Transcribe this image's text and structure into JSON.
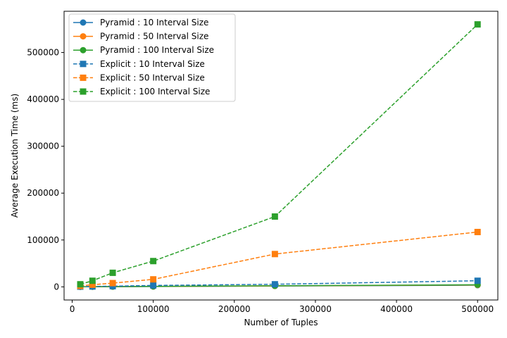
{
  "chart_data": {
    "type": "line",
    "title": "",
    "xlabel": "Number of Tuples",
    "ylabel": "Average Execution Time (ms)",
    "xlim": [
      -10000,
      525000
    ],
    "ylim": [
      -28000,
      588000
    ],
    "xticks": [
      0,
      100000,
      200000,
      300000,
      400000,
      500000
    ],
    "xtick_labels": [
      "0",
      "100000",
      "200000",
      "300000",
      "400000",
      "500000"
    ],
    "yticks": [
      0,
      100000,
      200000,
      300000,
      400000,
      500000
    ],
    "ytick_labels": [
      "0",
      "100000",
      "200000",
      "300000",
      "400000",
      "500000"
    ],
    "grid": false,
    "legend_position": "top-left",
    "x": [
      10000,
      25000,
      50000,
      100000,
      250000,
      500000
    ],
    "series": [
      {
        "name": "Pyramid : 10 Interval Size",
        "color": "#1f77b4",
        "style": "solid",
        "marker": "circle",
        "values": [
          100,
          200,
          400,
          700,
          1800,
          3500
        ]
      },
      {
        "name": "Pyramid : 50 Interval Size",
        "color": "#ff7f0e",
        "style": "solid",
        "marker": "circle",
        "values": [
          120,
          250,
          500,
          900,
          2000,
          4000
        ]
      },
      {
        "name": "Pyramid : 100 Interval Size",
        "color": "#2ca02c",
        "style": "solid",
        "marker": "circle",
        "values": [
          150,
          300,
          600,
          1000,
          2300,
          4500
        ]
      },
      {
        "name": "Explicit : 10 Interval Size",
        "color": "#1f77b4",
        "style": "dashed",
        "marker": "square",
        "values": [
          500,
          800,
          1500,
          3000,
          5500,
          13000
        ]
      },
      {
        "name": "Explicit : 50 Interval Size",
        "color": "#ff7f0e",
        "style": "dashed",
        "marker": "square",
        "values": [
          2000,
          4500,
          8000,
          16000,
          70000,
          117000
        ]
      },
      {
        "name": "Explicit : 100 Interval Size",
        "color": "#2ca02c",
        "style": "dashed",
        "marker": "square",
        "values": [
          5500,
          13000,
          30000,
          55000,
          150000,
          560000
        ]
      }
    ]
  }
}
